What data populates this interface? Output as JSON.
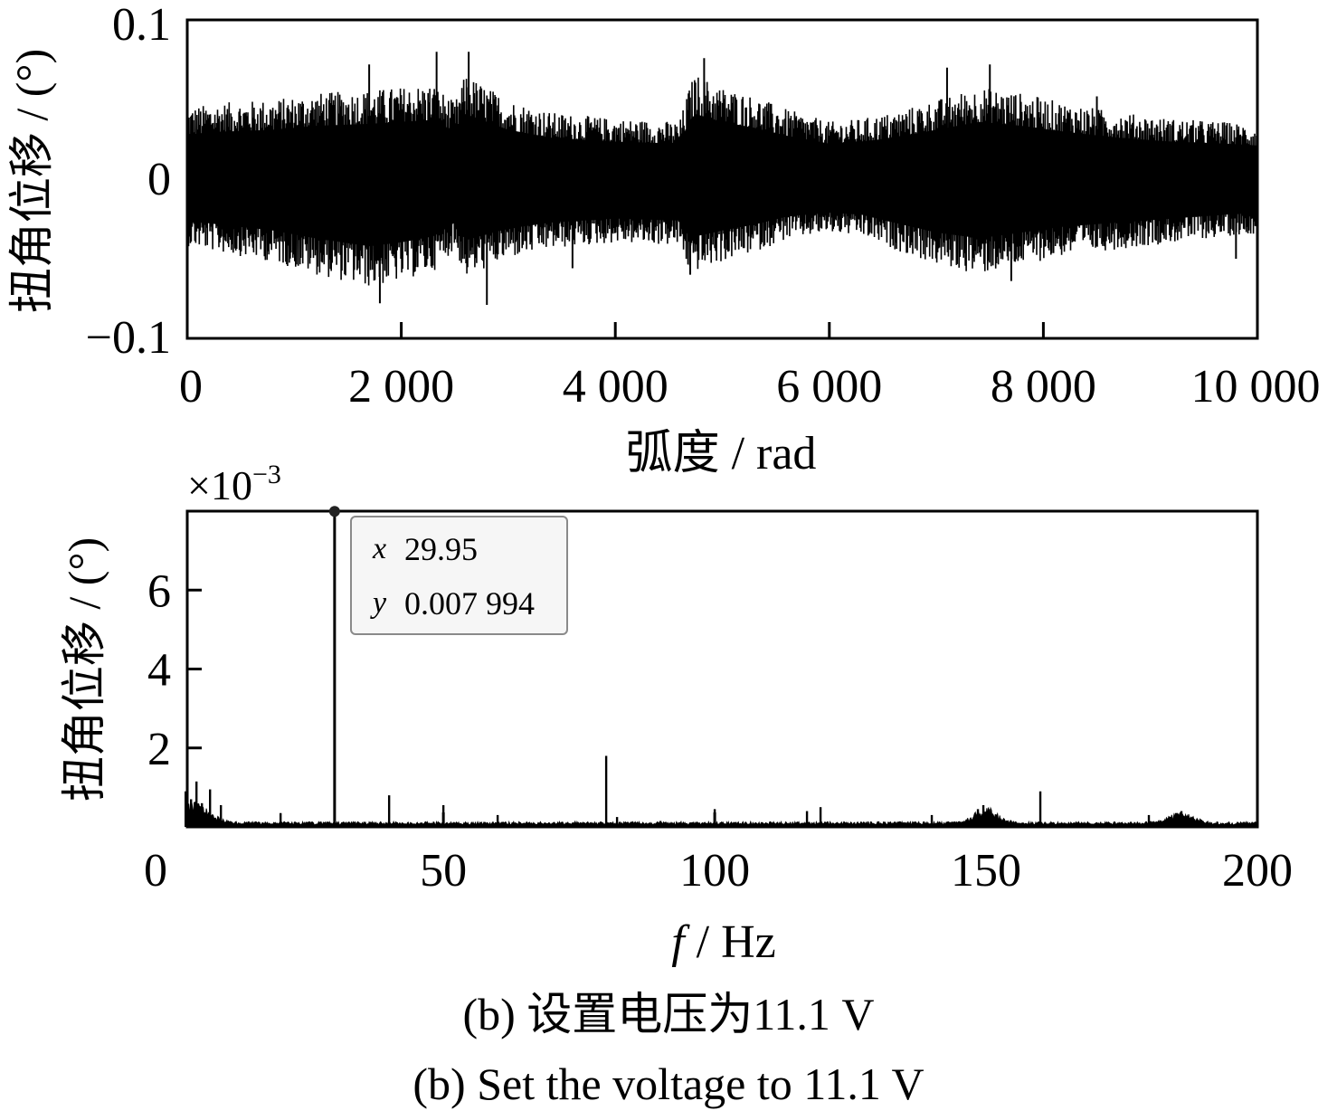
{
  "chart_data": [
    {
      "type": "line",
      "panel": "top",
      "xlabel": "弧度 / rad",
      "ylabel": "扭角位移 / (°)",
      "xlim": [
        0,
        10000
      ],
      "ylim": [
        -0.1,
        0.1
      ],
      "xticks": [
        0,
        2000,
        4000,
        6000,
        8000,
        10000
      ],
      "xtick_labels": [
        "0",
        "2 000",
        "4 000",
        "6 000",
        "8 000",
        "10 000"
      ],
      "yticks": [
        -0.1,
        0,
        0.1
      ],
      "ytick_labels": [
        "−0.1",
        "0",
        "0.1"
      ],
      "series_color": "#000000",
      "envelope": {
        "x": [
          0,
          300,
          800,
          1200,
          1700,
          2000,
          2300,
          2500,
          2600,
          2800,
          3000,
          3400,
          4000,
          4600,
          4700,
          4750,
          5000,
          5300,
          5600,
          6000,
          6300,
          6600,
          7000,
          7400,
          7800,
          8200,
          8700,
          9200,
          9700,
          10000
        ],
        "upper": [
          0.045,
          0.048,
          0.05,
          0.054,
          0.056,
          0.058,
          0.06,
          0.048,
          0.066,
          0.058,
          0.05,
          0.042,
          0.038,
          0.036,
          0.06,
          0.066,
          0.058,
          0.052,
          0.044,
          0.036,
          0.038,
          0.042,
          0.05,
          0.058,
          0.054,
          0.048,
          0.042,
          0.038,
          0.036,
          0.034
        ],
        "lower": [
          -0.042,
          -0.046,
          -0.052,
          -0.06,
          -0.068,
          -0.064,
          -0.058,
          -0.044,
          -0.062,
          -0.056,
          -0.05,
          -0.044,
          -0.04,
          -0.042,
          -0.06,
          -0.058,
          -0.052,
          -0.046,
          -0.038,
          -0.034,
          -0.036,
          -0.044,
          -0.054,
          -0.06,
          -0.054,
          -0.048,
          -0.044,
          -0.04,
          -0.036,
          -0.034
        ]
      },
      "spikes": [
        {
          "x": 2330,
          "y": 0.08
        },
        {
          "x": 2630,
          "y": 0.08
        },
        {
          "x": 2800,
          "y": -0.079
        },
        {
          "x": 1800,
          "y": -0.078
        },
        {
          "x": 4830,
          "y": 0.076
        },
        {
          "x": 1700,
          "y": 0.072
        },
        {
          "x": 7500,
          "y": 0.072
        },
        {
          "x": 7100,
          "y": 0.07
        },
        {
          "x": 7700,
          "y": -0.064
        },
        {
          "x": 4700,
          "y": -0.06
        },
        {
          "x": 3600,
          "y": -0.056
        },
        {
          "x": 8500,
          "y": 0.052
        },
        {
          "x": 0,
          "y": 0.062
        },
        {
          "x": 9800,
          "y": -0.05
        }
      ]
    },
    {
      "type": "line",
      "panel": "bottom",
      "xlabel_italic": "f",
      "xlabel_rest": " / Hz",
      "ylabel": "扭角位移 / (°)",
      "y_multiplier": "×10",
      "y_multiplier_exp": "−3",
      "xlim": [
        0,
        200
      ],
      "ylim": [
        0,
        8
      ],
      "xticks": [
        0,
        50,
        100,
        150,
        200
      ],
      "xtick_labels": [
        "0",
        "50",
        "100",
        "150",
        "200"
      ],
      "yticks": [
        2,
        4,
        6
      ],
      "ytick_labels": [
        "2",
        "4",
        "6"
      ],
      "series_color": "#000000",
      "peaks": [
        {
          "x": 2.5,
          "y": 0.9
        },
        {
          "x": 3.5,
          "y": 0.7
        },
        {
          "x": 4.5,
          "y": 1.15
        },
        {
          "x": 5.5,
          "y": 0.6
        },
        {
          "x": 7,
          "y": 0.95
        },
        {
          "x": 9,
          "y": 0.55
        },
        {
          "x": 20,
          "y": 0.35
        },
        {
          "x": 29.95,
          "y": 7.994
        },
        {
          "x": 40,
          "y": 0.8
        },
        {
          "x": 50,
          "y": 0.55
        },
        {
          "x": 60,
          "y": 0.3
        },
        {
          "x": 80,
          "y": 1.8
        },
        {
          "x": 82,
          "y": 0.25
        },
        {
          "x": 90,
          "y": 0.15
        },
        {
          "x": 100,
          "y": 0.45
        },
        {
          "x": 117,
          "y": 0.4
        },
        {
          "x": 119.5,
          "y": 0.5
        },
        {
          "x": 140,
          "y": 0.3
        },
        {
          "x": 148.5,
          "y": 0.45
        },
        {
          "x": 149.5,
          "y": 0.55
        },
        {
          "x": 150.5,
          "y": 0.45
        },
        {
          "x": 160,
          "y": 0.9
        },
        {
          "x": 180,
          "y": 0.3
        },
        {
          "x": 185,
          "y": 0.35
        },
        {
          "x": 186,
          "y": 0.4
        }
      ],
      "humps": [
        {
          "center": 4,
          "width": 4,
          "height": 0.35
        },
        {
          "center": 150,
          "width": 3,
          "height": 0.3
        },
        {
          "center": 186,
          "width": 3,
          "height": 0.2
        }
      ],
      "datatip": {
        "x_label": "x",
        "x_value": "29.95",
        "y_label": "y",
        "y_value": "0.007 994",
        "point": {
          "x": 29.95,
          "y": 7.994
        }
      }
    }
  ],
  "captions": {
    "cn": "(b)  设置电压为11.1 V",
    "en": "(b)  Set the voltage to 11.1 V"
  }
}
